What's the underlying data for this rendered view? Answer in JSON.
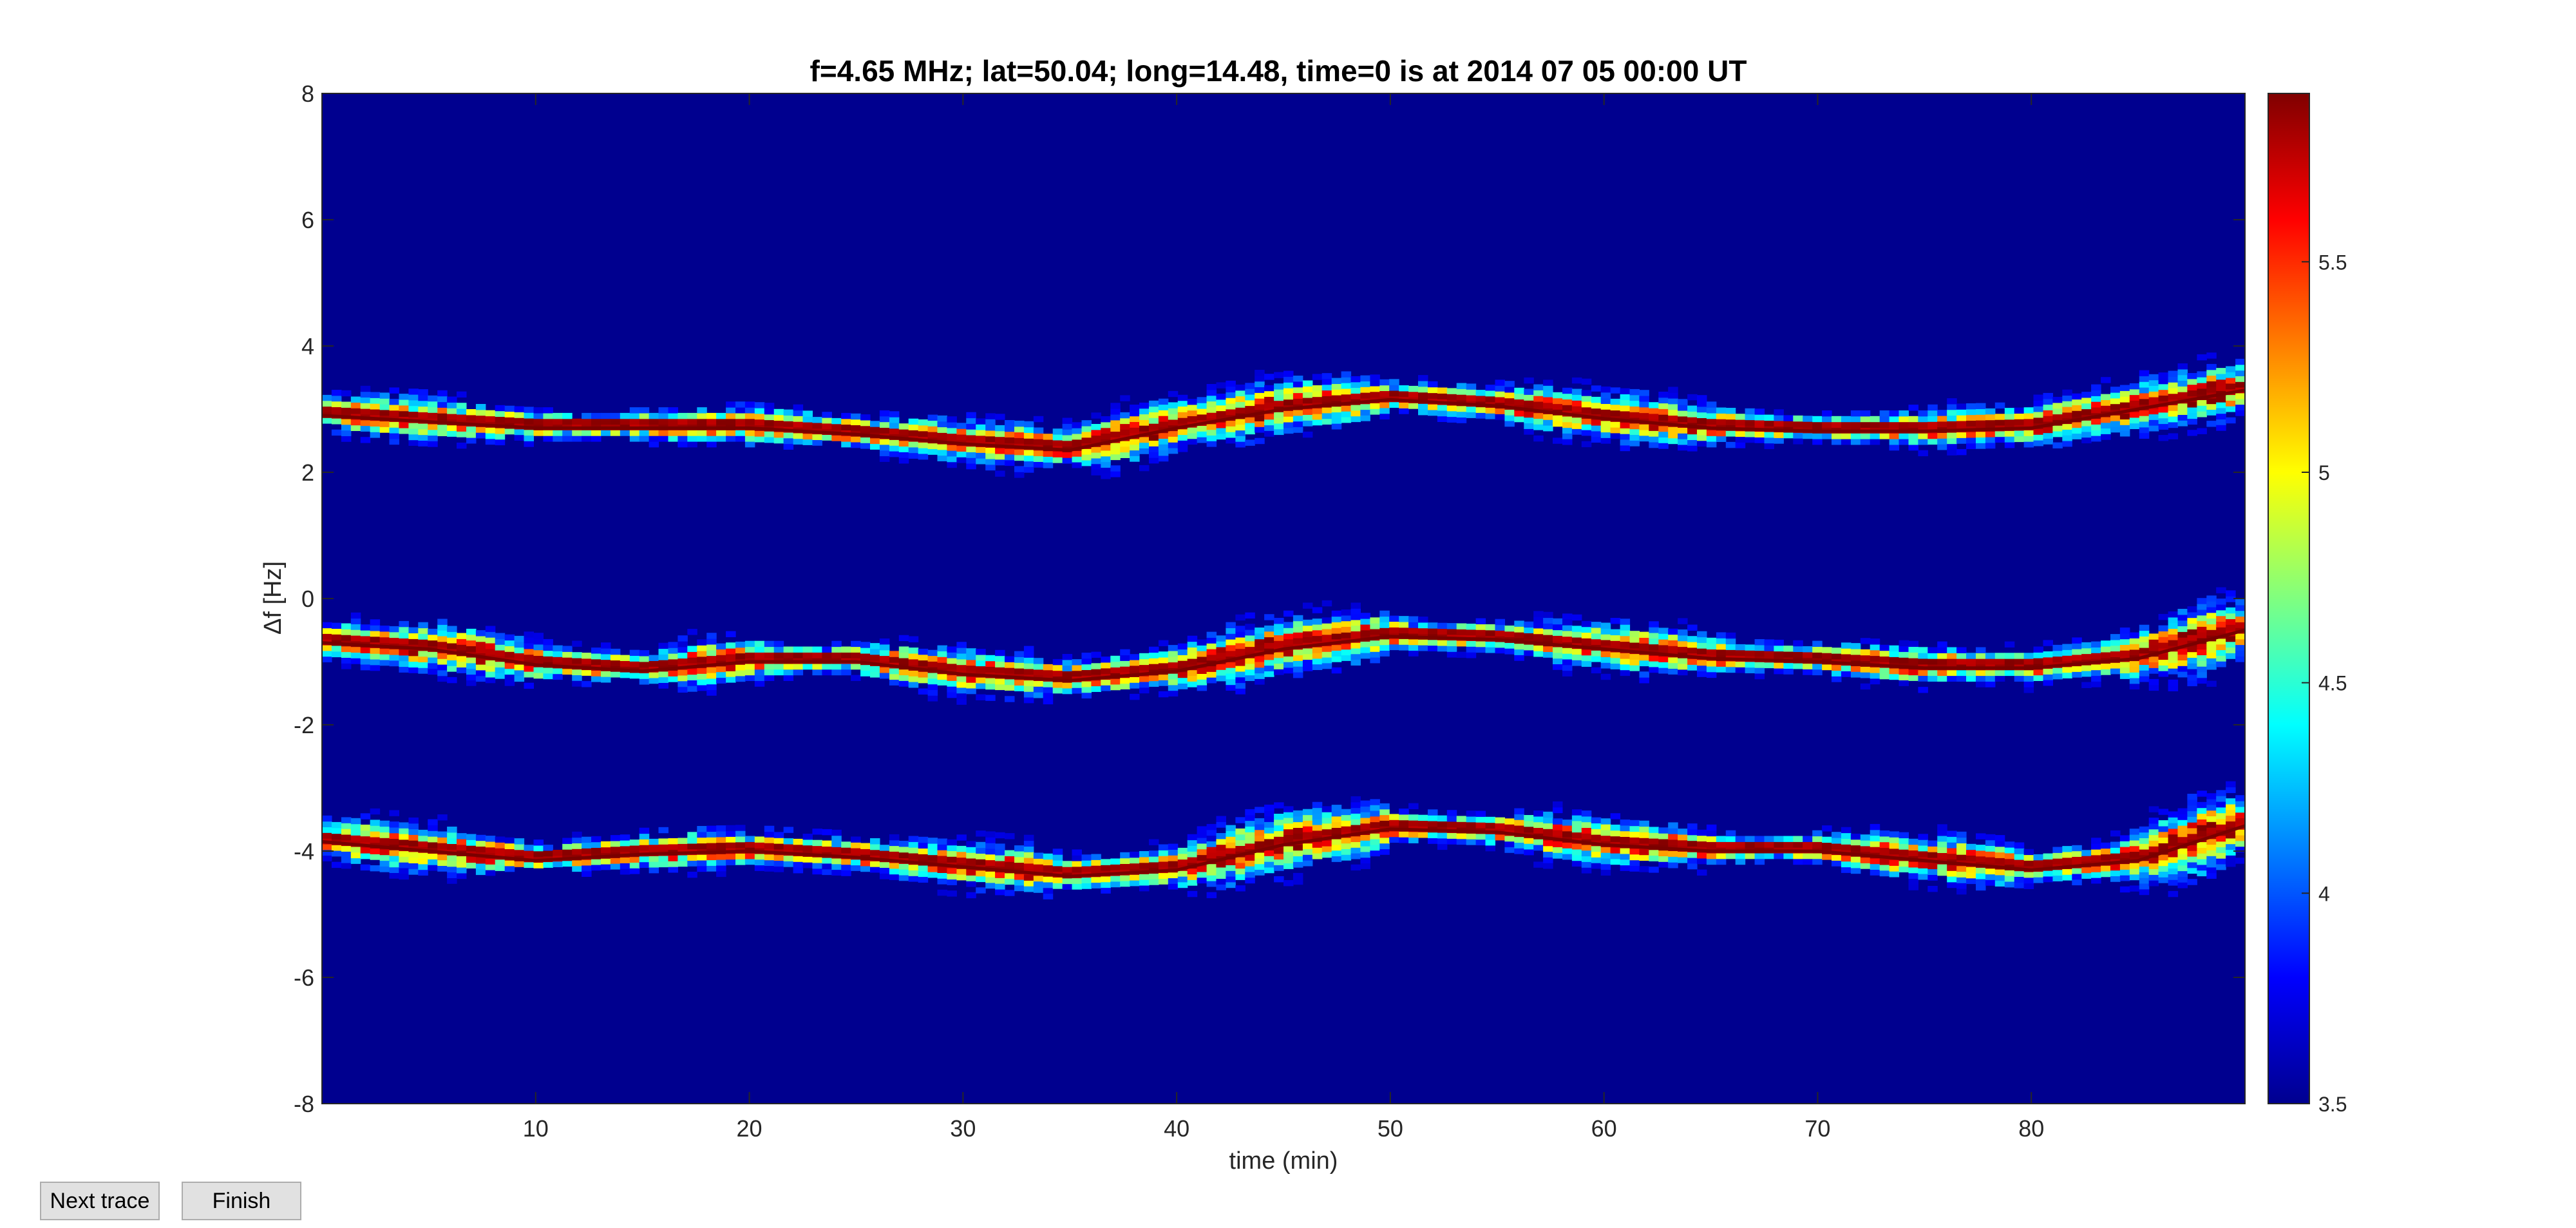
{
  "chart_data": {
    "type": "heatmap",
    "title": "f=4.65 MHz;  lat=50.04; long=14.48, time=0 is at 2014 07 05 00:00 UT",
    "xlabel": "time (min)",
    "ylabel": "Δf [Hz]",
    "xlim": [
      0,
      90
    ],
    "ylim": [
      -8,
      8
    ],
    "xticks": [
      10,
      20,
      30,
      40,
      50,
      60,
      70,
      80
    ],
    "yticks": [
      -8,
      -6,
      -4,
      -2,
      0,
      2,
      4,
      6,
      8
    ],
    "colorbar": {
      "lim": [
        3.5,
        5.9
      ],
      "ticks": [
        3.5,
        4,
        4.5,
        5,
        5.5
      ],
      "colormap": "jet"
    },
    "background_value": 3.5,
    "traces": [
      {
        "t": [
          0,
          5,
          10,
          15,
          20,
          25,
          30,
          35,
          40,
          45,
          50,
          55,
          60,
          65,
          70,
          75,
          80,
          85,
          90
        ],
        "df": [
          2.9,
          2.8,
          2.7,
          2.7,
          2.7,
          2.6,
          2.45,
          2.35,
          2.7,
          3.0,
          3.15,
          3.05,
          2.85,
          2.7,
          2.65,
          2.65,
          2.7,
          3.0,
          3.3
        ]
      },
      {
        "t": [
          0,
          5,
          10,
          15,
          20,
          25,
          30,
          35,
          40,
          45,
          50,
          55,
          60,
          65,
          70,
          75,
          80,
          85,
          90
        ],
        "df": [
          -0.7,
          -0.8,
          -1.05,
          -1.15,
          -1.0,
          -1.0,
          -1.2,
          -1.3,
          -1.15,
          -0.8,
          -0.6,
          -0.65,
          -0.8,
          -0.95,
          -1.0,
          -1.1,
          -1.1,
          -0.95,
          -0.5
        ]
      },
      {
        "t": [
          0,
          5,
          10,
          15,
          20,
          25,
          30,
          35,
          40,
          45,
          50,
          55,
          60,
          65,
          70,
          75,
          80,
          85,
          90
        ],
        "df": [
          -3.85,
          -4.0,
          -4.15,
          -4.05,
          -4.0,
          -4.1,
          -4.25,
          -4.4,
          -4.3,
          -3.9,
          -3.65,
          -3.7,
          -3.9,
          -4.0,
          -4.0,
          -4.15,
          -4.3,
          -4.15,
          -3.6
        ]
      }
    ]
  },
  "buttons": {
    "next_label": "Next trace",
    "finish_label": "Finish"
  }
}
